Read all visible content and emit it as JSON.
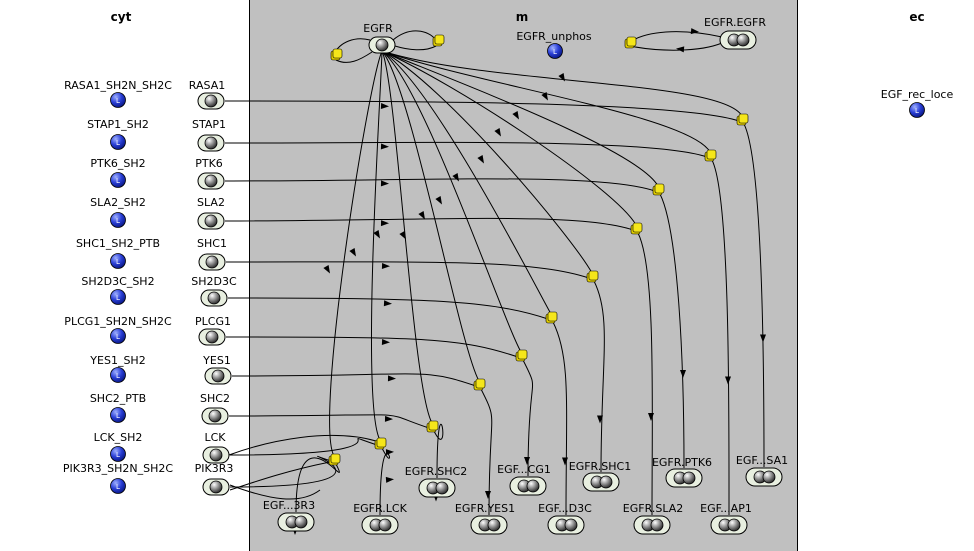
{
  "compartments": {
    "cyt": "cyt",
    "m": "m",
    "ec": "ec"
  },
  "ligands": [
    {
      "id": "lig-rasa1",
      "label": "RASA1_SH2N_SH2C"
    },
    {
      "id": "lig-stap1",
      "label": "STAP1_SH2"
    },
    {
      "id": "lig-ptk6",
      "label": "PTK6_SH2"
    },
    {
      "id": "lig-sla2",
      "label": "SLA2_SH2"
    },
    {
      "id": "lig-shc1",
      "label": "SHC1_SH2_PTB"
    },
    {
      "id": "lig-sh2d3c",
      "label": "SH2D3C_SH2"
    },
    {
      "id": "lig-plcg1",
      "label": "PLCG1_SH2N_SH2C"
    },
    {
      "id": "lig-yes1",
      "label": "YES1_SH2"
    },
    {
      "id": "lig-shc2",
      "label": "SHC2_PTB"
    },
    {
      "id": "lig-lck",
      "label": "LCK_SH2"
    },
    {
      "id": "lig-pik3r3",
      "label": "PIK3R3_SH2N_SH2C"
    }
  ],
  "proteins": [
    {
      "id": "p-rasa1",
      "label": "RASA1"
    },
    {
      "id": "p-stap1",
      "label": "STAP1"
    },
    {
      "id": "p-ptk6",
      "label": "PTK6"
    },
    {
      "id": "p-sla2",
      "label": "SLA2"
    },
    {
      "id": "p-shc1",
      "label": "SHC1"
    },
    {
      "id": "p-sh2d3c",
      "label": "SH2D3C"
    },
    {
      "id": "p-plcg1",
      "label": "PLCG1"
    },
    {
      "id": "p-yes1",
      "label": "YES1"
    },
    {
      "id": "p-shc2",
      "label": "SHC2"
    },
    {
      "id": "p-lck",
      "label": "LCK"
    },
    {
      "id": "p-pik3r3",
      "label": "PIK3R3"
    }
  ],
  "receptor": {
    "label": "EGFR"
  },
  "unphos": {
    "label": "EGFR_unphos"
  },
  "dimer": {
    "label": "EGFR.EGFR"
  },
  "ec_ligand": {
    "label": "EGF_rec_loce"
  },
  "complexes": [
    {
      "id": "c-sa1",
      "label": "EGF...SA1"
    },
    {
      "id": "c-ap1",
      "label": "EGF...AP1"
    },
    {
      "id": "c-ptk6",
      "label": "EGFR.PTK6"
    },
    {
      "id": "c-sla2",
      "label": "EGFR.SLA2"
    },
    {
      "id": "c-shc1",
      "label": "EGFR.SHC1"
    },
    {
      "id": "c-d3c",
      "label": "EGF...D3C"
    },
    {
      "id": "c-cg1",
      "label": "EGF...CG1"
    },
    {
      "id": "c-yes1",
      "label": "EGFR.YES1"
    },
    {
      "id": "c-shc2",
      "label": "EGFR.SHC2"
    },
    {
      "id": "c-lck",
      "label": "EGFR.LCK"
    },
    {
      "id": "c-3r3",
      "label": "EGF...3R3"
    }
  ],
  "colors": {
    "membrane": "#c0c0c0",
    "ligand_blue": "#2a3fd6",
    "reaction_yellow": "#f5e61a",
    "protein_fill": "#e8efe0"
  }
}
